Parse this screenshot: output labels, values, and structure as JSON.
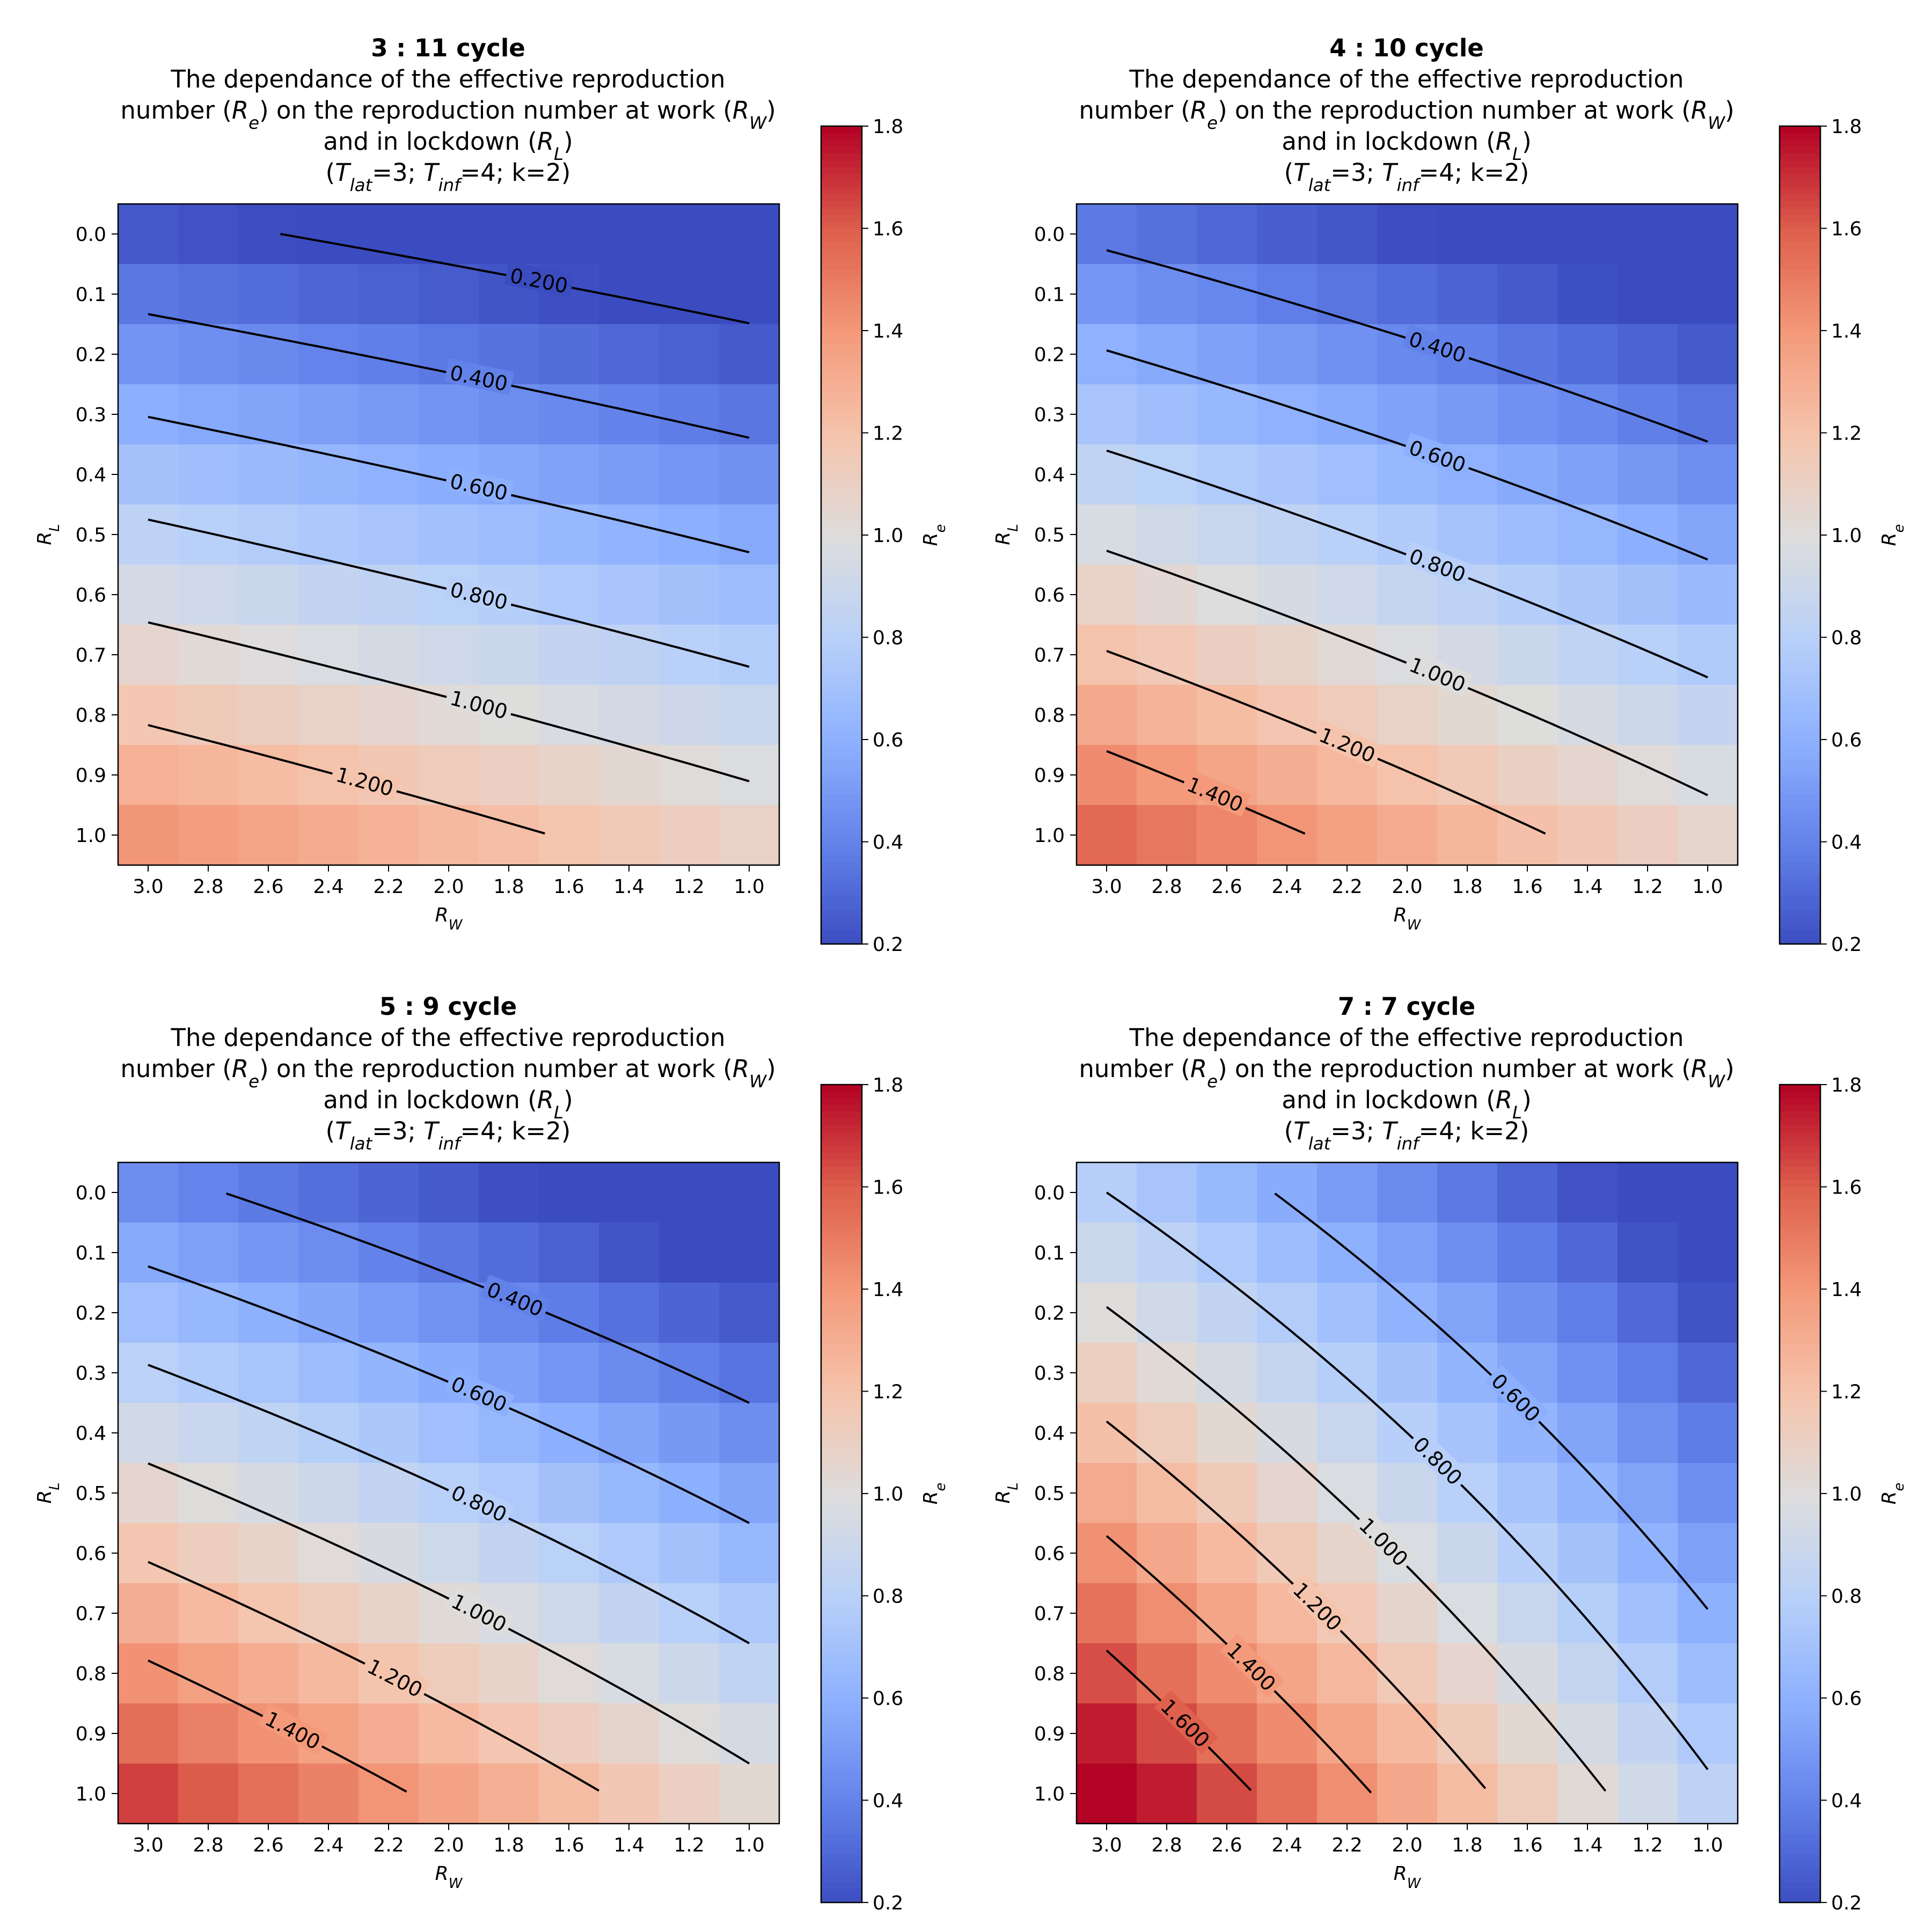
{
  "chart_data": [
    {
      "type": "heatmap",
      "title": "3 : 11 cycle",
      "subtitle": [
        "The dependance of the effective reproduction",
        "number (R_e) on the reproduction number at work (R_W)",
        "and in lockdown (R_L)",
        "(T_lat=3; T_inf=4; k=2)"
      ],
      "xlabel": "R_W",
      "ylabel": "R_L",
      "colorbar_label": "R_e",
      "x": [
        3.0,
        2.8,
        2.6,
        2.4,
        2.2,
        2.0,
        1.8,
        1.6,
        1.4,
        1.2,
        1.0
      ],
      "y": [
        0.0,
        0.1,
        0.2,
        0.3,
        0.4,
        0.5,
        0.6,
        0.7,
        0.8,
        0.9,
        1.0
      ],
      "re_w_coef": 0.1,
      "re_l_coef": 1.05,
      "re_curv": 0.12,
      "contour_levels": [
        0.2,
        0.4,
        0.6,
        0.8,
        1.0,
        1.2
      ],
      "contour_labels": [
        "0.200",
        "0.400",
        "0.600",
        "0.800",
        "1.000",
        "1.200"
      ]
    },
    {
      "type": "heatmap",
      "title": "4 : 10 cycle",
      "subtitle": [
        "The dependance of the effective reproduction",
        "number (R_e) on the reproduction number at work (R_W)",
        "and in lockdown (R_L)",
        "(T_lat=3; T_inf=4; k=2)"
      ],
      "xlabel": "R_W",
      "ylabel": "R_L",
      "colorbar_label": "R_e",
      "x": [
        3.0,
        2.8,
        2.6,
        2.4,
        2.2,
        2.0,
        1.8,
        1.6,
        1.4,
        1.2,
        1.0
      ],
      "y": [
        0.0,
        0.1,
        0.2,
        0.3,
        0.4,
        0.5,
        0.6,
        0.7,
        0.8,
        0.9,
        1.0
      ],
      "re_w_coef": 0.16,
      "re_l_coef": 1.02,
      "re_curv": 0.18,
      "contour_levels": [
        0.4,
        0.6,
        0.8,
        1.0,
        1.2,
        1.4
      ],
      "contour_labels": [
        "0.400",
        "0.600",
        "0.800",
        "1.000",
        "1.200",
        "1.400"
      ]
    },
    {
      "type": "heatmap",
      "title": "5 : 9 cycle",
      "subtitle": [
        "The dependance of the effective reproduction",
        "number (R_e) on the reproduction number at work (R_W)",
        "and in lockdown (R_L)",
        "(T_lat=3; T_inf=4; k=2)"
      ],
      "xlabel": "R_W",
      "ylabel": "R_L",
      "colorbar_label": "R_e",
      "x": [
        3.0,
        2.8,
        2.6,
        2.4,
        2.2,
        2.0,
        1.8,
        1.6,
        1.4,
        1.2,
        1.0
      ],
      "y": [
        0.0,
        0.1,
        0.2,
        0.3,
        0.4,
        0.5,
        0.6,
        0.7,
        0.8,
        0.9,
        1.0
      ],
      "re_w_coef": 0.2,
      "re_l_coef": 1.0,
      "re_curv": 0.22,
      "contour_levels": [
        0.4,
        0.6,
        0.8,
        1.0,
        1.2,
        1.4
      ],
      "contour_labels": [
        "0.400",
        "0.600",
        "0.800",
        "1.000",
        "1.200",
        "1.400"
      ]
    },
    {
      "type": "heatmap",
      "title": "7 : 7 cycle",
      "subtitle": [
        "The dependance of the effective reproduction",
        "number (R_e) on the reproduction number at work (R_W)",
        "and in lockdown (R_L)",
        "(T_lat=3; T_inf=4; k=2)"
      ],
      "xlabel": "R_W",
      "ylabel": "R_L",
      "colorbar_label": "R_e",
      "x": [
        3.0,
        2.8,
        2.6,
        2.4,
        2.2,
        2.0,
        1.8,
        1.6,
        1.4,
        1.2,
        1.0
      ],
      "y": [
        0.0,
        0.1,
        0.2,
        0.3,
        0.4,
        0.5,
        0.6,
        0.7,
        0.8,
        0.9,
        1.0
      ],
      "re_w_coef": 0.36,
      "re_l_coef": 0.75,
      "re_curv": 0.3,
      "contour_levels": [
        0.6,
        0.8,
        1.0,
        1.2,
        1.4,
        1.6
      ],
      "contour_labels": [
        "0.600",
        "0.800",
        "1.000",
        "1.200",
        "1.400",
        "1.600"
      ]
    }
  ],
  "colorbar": {
    "ticks": [
      0.2,
      0.4,
      0.6,
      0.8,
      1.0,
      1.2,
      1.4,
      1.6,
      1.8
    ],
    "tick_labels": [
      "0.2",
      "0.4",
      "0.6",
      "0.8",
      "1.0",
      "1.2",
      "1.4",
      "1.6",
      "1.8"
    ],
    "range": [
      0.2,
      1.8
    ],
    "colormap": "coolwarm"
  },
  "x_tick_labels": [
    "3.0",
    "2.8",
    "2.6",
    "2.4",
    "2.2",
    "2.0",
    "1.8",
    "1.6",
    "1.4",
    "1.2",
    "1.0"
  ],
  "y_tick_labels": [
    "0.0",
    "0.1",
    "0.2",
    "0.3",
    "0.4",
    "0.5",
    "0.6",
    "0.7",
    "0.8",
    "0.9",
    "1.0"
  ],
  "colors": {
    "contour": "#000000",
    "background": "#ffffff"
  }
}
